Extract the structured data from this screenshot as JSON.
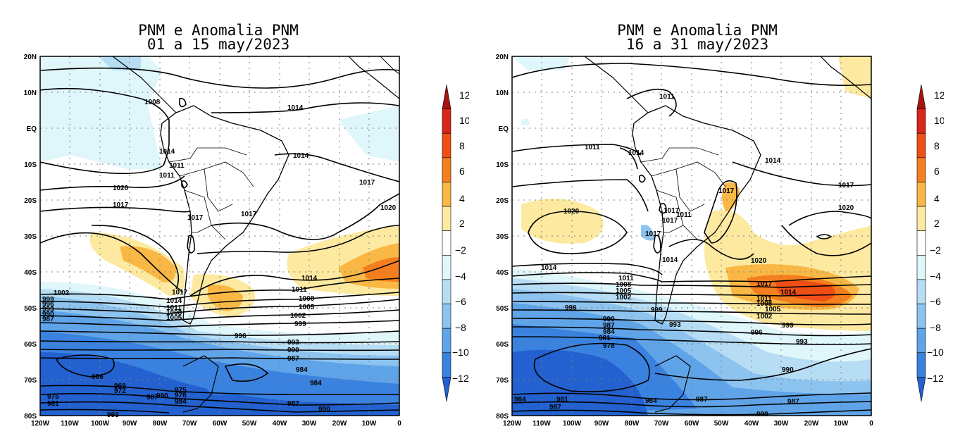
{
  "panels": [
    {
      "title_line1": "PNM e Anomalia PNM",
      "title_line2": "01 a 15 may/2023",
      "contours": [
        {
          "label": "1008"
        },
        {
          "label": "1014"
        },
        {
          "label": "1014"
        },
        {
          "label": "1011"
        },
        {
          "label": "1011"
        },
        {
          "label": "1014"
        },
        {
          "label": "1017"
        },
        {
          "label": "1020"
        },
        {
          "label": "1017"
        },
        {
          "label": "1017"
        },
        {
          "label": "1017"
        },
        {
          "label": "1020"
        },
        {
          "label": "1014"
        },
        {
          "label": "1011"
        },
        {
          "label": "1008"
        },
        {
          "label": "1005"
        },
        {
          "label": "1002"
        },
        {
          "label": "999"
        },
        {
          "label": "996"
        },
        {
          "label": "993"
        },
        {
          "label": "990"
        },
        {
          "label": "987"
        },
        {
          "label": "984"
        },
        {
          "label": "984"
        },
        {
          "label": "987"
        },
        {
          "label": "990"
        },
        {
          "label": "966"
        },
        {
          "label": "969"
        },
        {
          "label": "972"
        },
        {
          "label": "987"
        },
        {
          "label": "990"
        },
        {
          "label": "975"
        },
        {
          "label": "978"
        },
        {
          "label": "984"
        },
        {
          "label": "975"
        },
        {
          "label": "981"
        },
        {
          "label": "1002"
        },
        {
          "label": "999"
        },
        {
          "label": "996"
        },
        {
          "label": "993"
        },
        {
          "label": "990"
        },
        {
          "label": "987"
        },
        {
          "label": "1017"
        },
        {
          "label": "1014"
        },
        {
          "label": "1011"
        },
        {
          "label": "1008"
        },
        {
          "label": "1005"
        },
        {
          "label": "993"
        }
      ]
    },
    {
      "title_line1": "PNM e Anomalia PNM",
      "title_line2": "16 a 31 may/2023",
      "contours": [
        {
          "label": "1011"
        },
        {
          "label": "1011"
        },
        {
          "label": "1014"
        },
        {
          "label": "1014"
        },
        {
          "label": "1017"
        },
        {
          "label": "1017"
        },
        {
          "label": "1020"
        },
        {
          "label": "1020"
        },
        {
          "label": "1017"
        },
        {
          "label": "1017"
        },
        {
          "label": "1011"
        },
        {
          "label": "1017"
        },
        {
          "label": "1014"
        },
        {
          "label": "1014"
        },
        {
          "label": "1020"
        },
        {
          "label": "1017"
        },
        {
          "label": "1014"
        },
        {
          "label": "1011"
        },
        {
          "label": "1008"
        },
        {
          "label": "1005"
        },
        {
          "label": "1002"
        },
        {
          "label": "999"
        },
        {
          "label": "996"
        },
        {
          "label": "993"
        },
        {
          "label": "990"
        },
        {
          "label": "1011"
        },
        {
          "label": "1008"
        },
        {
          "label": "1005"
        },
        {
          "label": "1002"
        },
        {
          "label": "996"
        },
        {
          "label": "999"
        },
        {
          "label": "993"
        },
        {
          "label": "990"
        },
        {
          "label": "987"
        },
        {
          "label": "984"
        },
        {
          "label": "981"
        },
        {
          "label": "978"
        },
        {
          "label": "984"
        },
        {
          "label": "987"
        },
        {
          "label": "981"
        },
        {
          "label": "984"
        },
        {
          "label": "987"
        },
        {
          "label": "990"
        },
        {
          "label": "987"
        }
      ]
    }
  ],
  "map_axes": {
    "lat_labels": [
      "20N",
      "10N",
      "EQ",
      "10S",
      "20S",
      "30S",
      "40S",
      "50S",
      "60S",
      "70S",
      "80S"
    ],
    "lon_labels": [
      "120W",
      "110W",
      "100W",
      "90W",
      "80W",
      "70W",
      "60W",
      "50W",
      "40W",
      "30W",
      "20W",
      "10W",
      "0"
    ]
  },
  "colorbar": {
    "labels": [
      "12",
      "10",
      "8",
      "6",
      "4",
      "2",
      "−2",
      "−4",
      "−6",
      "−8",
      "−10",
      "−12"
    ],
    "colors": [
      "#a8150e",
      "#d9261b",
      "#ef4f14",
      "#f57f1e",
      "#f9b845",
      "#fdeaa0",
      "#ffffff",
      "#dff6fb",
      "#b7ddf5",
      "#8cc3ef",
      "#5fa4e8",
      "#3a82df",
      "#2261cf"
    ]
  }
}
